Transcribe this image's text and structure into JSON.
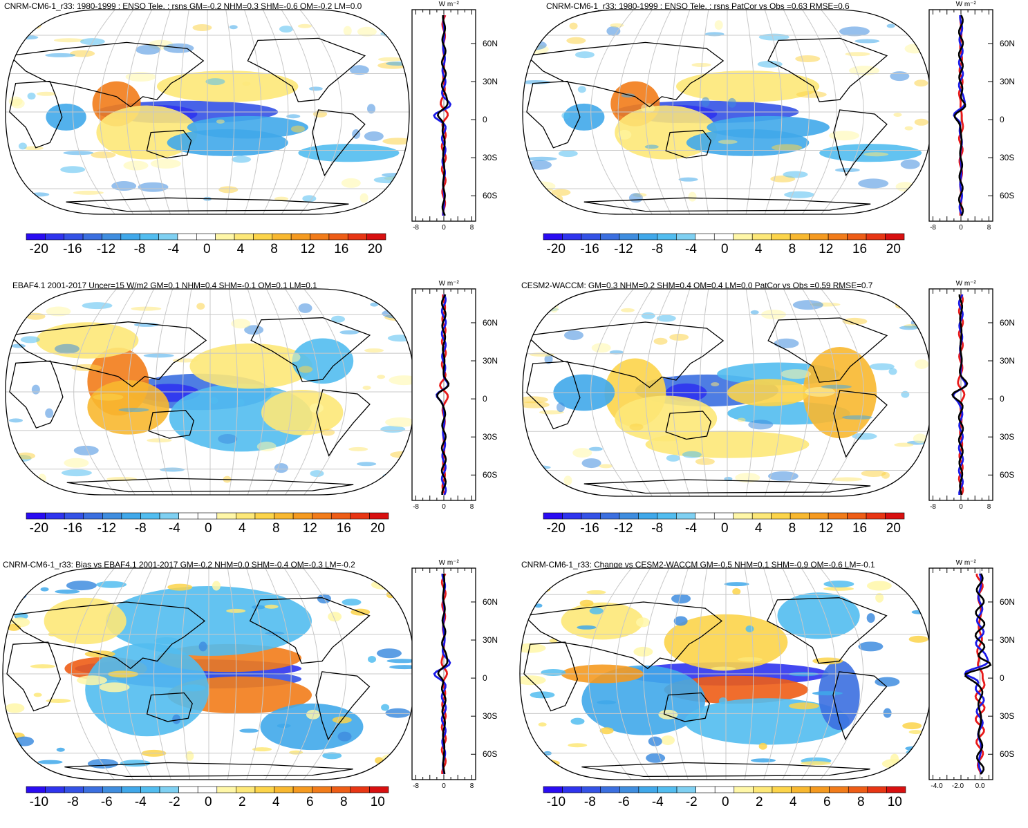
{
  "palette": {
    "neg": [
      "#2a0cf2",
      "#2f34ee",
      "#3452e6",
      "#3b6fe0",
      "#3f8ddf",
      "#40a8ea",
      "#52bdf0",
      "#7fd0f2"
    ],
    "zero": [
      "#ffffff",
      "#ffffff"
    ],
    "pos": [
      "#fff7a8",
      "#fde878",
      "#fcd44a",
      "#f8b830",
      "#f59a20",
      "#f27c1a",
      "#ee5d16",
      "#e83614",
      "#d81010"
    ],
    "model_line": "#e81a1a",
    "obs_line": "#1a1ae8",
    "diff_line": "#000000",
    "land_outline": "#000000"
  },
  "panels": [
    {
      "title": "CNRM-CM6-1_r33: 1980-1999 : ENSO Tele. : rsns GM=-0.2 NHM=0.3 SHM=-0.6 OM=-0.2 LM=0.0",
      "colorbar": [
        "-20",
        "-16",
        "-12",
        "-8",
        "-4",
        "0",
        "4",
        "8",
        "12",
        "16",
        "20"
      ],
      "zonal_ticks": [
        "-8",
        "0",
        "8"
      ],
      "lat_labels": [
        "60N",
        "30N",
        "0",
        "30S",
        "60S"
      ],
      "units": "W m⁻²"
    },
    {
      "title": "CNRM-CM6-1_r33: 1980-1999 : ENSO Tele. : rsns PatCor vs Obs =0.63 RMSE=0.6",
      "colorbar": [
        "-20",
        "-16",
        "-12",
        "-8",
        "-4",
        "0",
        "4",
        "8",
        "12",
        "16",
        "20"
      ],
      "zonal_ticks": [
        "-8",
        "0",
        "8"
      ],
      "lat_labels": [
        "60N",
        "30N",
        "0",
        "30S",
        "60S"
      ],
      "units": "W m⁻²"
    },
    {
      "title": "EBAF4.1 2001-2017 Uncer=15 W/m2 GM=0.1 NHM=0.4 SHM=-0.1 OM=0.1 LM=0.1",
      "colorbar": [
        "-20",
        "-16",
        "-12",
        "-8",
        "-4",
        "0",
        "4",
        "8",
        "12",
        "16",
        "20"
      ],
      "zonal_ticks": [
        "-8",
        "0",
        "8"
      ],
      "lat_labels": [
        "60N",
        "30N",
        "0",
        "30S",
        "60S"
      ],
      "units": "W m⁻²"
    },
    {
      "title": "CESM2-WACCM: GM=0.3 NHM=0.2 SHM=0.4 OM=0.4 LM=0.0 PatCor vs Obs =0.59 RMSE=0.7",
      "colorbar": [
        "-20",
        "-16",
        "-12",
        "-8",
        "-4",
        "0",
        "4",
        "8",
        "12",
        "16",
        "20"
      ],
      "zonal_ticks": [
        "-8",
        "0",
        "8"
      ],
      "lat_labels": [
        "60N",
        "30N",
        "0",
        "30S",
        "60S"
      ],
      "units": "W m⁻²"
    },
    {
      "title": "CNRM-CM6-1_r33: Bias vs EBAF4.1 2001-2017 GM=-0.2 NHM=0.0 SHM=-0.4 OM=-0.3 LM=-0.2",
      "colorbar": [
        "-10",
        "-8",
        "-6",
        "-4",
        "-2",
        "0",
        "2",
        "4",
        "6",
        "8",
        "10"
      ],
      "zonal_ticks": [
        "-8",
        "0",
        "8"
      ],
      "lat_labels": [
        "60N",
        "30N",
        "0",
        "30S",
        "60S"
      ],
      "units": "W m⁻²"
    },
    {
      "title": "CNRM-CM6-1_r33: Change vs CESM2-WACCM GM=-0.5 NHM=0.1 SHM=-0.9 OM=-0.6 LM=-0.1",
      "colorbar": [
        "-10",
        "-8",
        "-6",
        "-4",
        "-2",
        "0",
        "2",
        "4",
        "6",
        "8",
        "10"
      ],
      "zonal_ticks": [
        "-4.0",
        "-2.0",
        "0.0"
      ],
      "lat_labels": [
        "60N",
        "30N",
        "0",
        "30S",
        "60S"
      ],
      "units": "W m⁻²"
    }
  ]
}
